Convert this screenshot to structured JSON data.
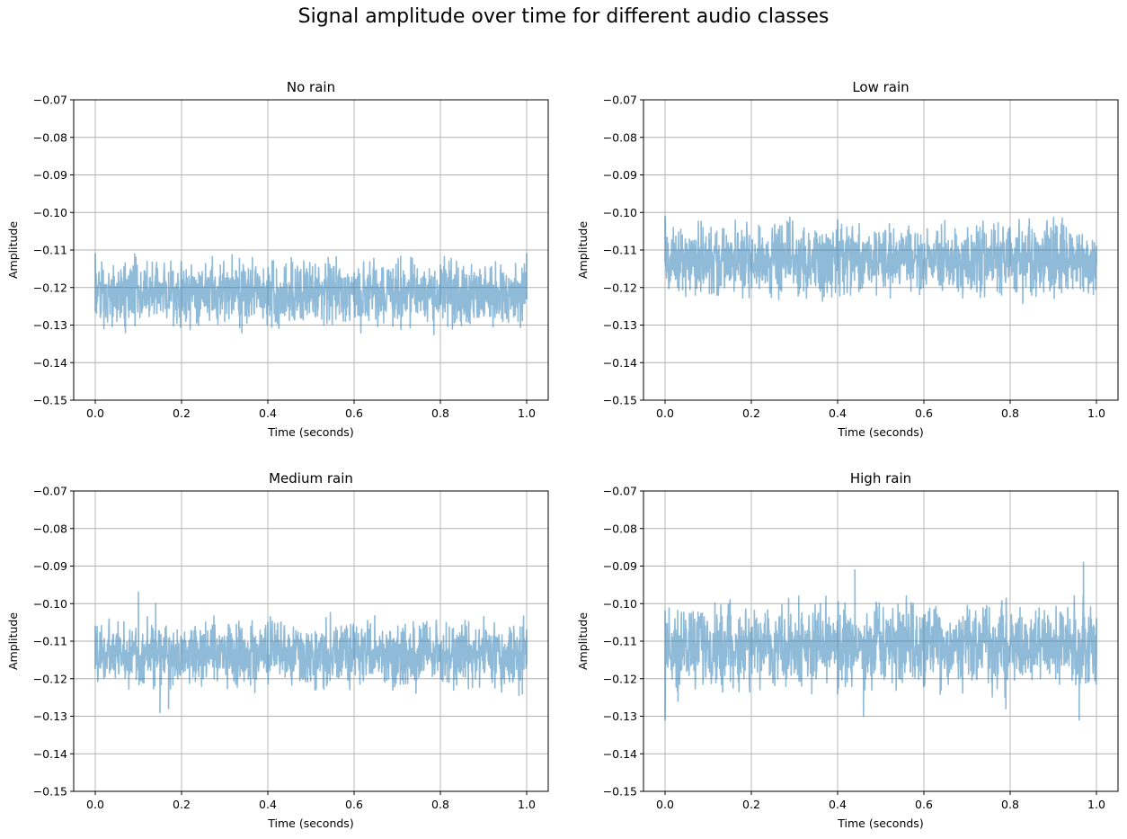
{
  "figure": {
    "title": "Signal amplitude over time for different audio classes"
  },
  "chart_data": [
    {
      "type": "line",
      "title": "No rain",
      "xlabel": "Time (seconds)",
      "ylabel": "Amplitude",
      "xlim": [
        -0.05,
        1.05
      ],
      "ylim": [
        -0.15,
        -0.07
      ],
      "xticks": [
        0.0,
        0.2,
        0.4,
        0.6,
        0.8,
        1.0
      ],
      "xtick_labels": [
        "0.0",
        "0.2",
        "0.4",
        "0.6",
        "0.8",
        "1.0"
      ],
      "yticks": [
        -0.15,
        -0.14,
        -0.13,
        -0.12,
        -0.11,
        -0.1,
        -0.09,
        -0.08,
        -0.07
      ],
      "ytick_labels": [
        "−0.15",
        "−0.14",
        "−0.13",
        "−0.12",
        "−0.11",
        "−0.10",
        "−0.09",
        "−0.08",
        "−0.07"
      ],
      "grid": true,
      "color": "#1f77b4",
      "alpha": 0.5,
      "x_range": [
        0.0,
        1.0
      ],
      "series": [
        {
          "points": [
            [
              0.0,
              -0.123
            ],
            [
              0.0,
              -0.111
            ],
            [
              0.02,
              -0.131
            ],
            [
              0.05,
              -0.129
            ],
            [
              0.06,
              -0.116
            ],
            [
              0.07,
              -0.132
            ],
            [
              0.12,
              -0.113
            ],
            [
              0.17,
              -0.116
            ],
            [
              0.21,
              -0.129
            ],
            [
              0.24,
              -0.116
            ],
            [
              0.29,
              -0.114
            ],
            [
              0.3,
              -0.129
            ],
            [
              0.34,
              -0.132
            ],
            [
              0.39,
              -0.115
            ],
            [
              0.42,
              -0.115
            ],
            [
              0.46,
              -0.128
            ],
            [
              0.49,
              -0.115
            ],
            [
              0.53,
              -0.13
            ],
            [
              0.54,
              -0.112
            ],
            [
              0.58,
              -0.129
            ],
            [
              0.61,
              -0.115
            ],
            [
              0.65,
              -0.128
            ],
            [
              0.69,
              -0.115
            ],
            [
              0.74,
              -0.114
            ],
            [
              0.77,
              -0.129
            ],
            [
              0.82,
              -0.113
            ],
            [
              0.86,
              -0.129
            ],
            [
              0.94,
              -0.114
            ],
            [
              0.98,
              -0.129
            ],
            [
              1.0,
              -0.111
            ],
            [
              1.0,
              -0.123
            ]
          ],
          "center": -0.1215,
          "spread": 0.004,
          "spike_count": 50
        }
      ]
    },
    {
      "type": "line",
      "title": "Low rain",
      "xlabel": "Time (seconds)",
      "ylabel": "Amplitude",
      "xlim": [
        -0.05,
        1.05
      ],
      "ylim": [
        -0.15,
        -0.07
      ],
      "xticks": [
        0.0,
        0.2,
        0.4,
        0.6,
        0.8,
        1.0
      ],
      "xtick_labels": [
        "0.0",
        "0.2",
        "0.4",
        "0.6",
        "0.8",
        "1.0"
      ],
      "yticks": [
        -0.15,
        -0.14,
        -0.13,
        -0.12,
        -0.11,
        -0.1,
        -0.09,
        -0.08,
        -0.07
      ],
      "ytick_labels": [
        "−0.15",
        "−0.14",
        "−0.13",
        "−0.12",
        "−0.11",
        "−0.10",
        "−0.09",
        "−0.08",
        "−0.07"
      ],
      "grid": true,
      "color": "#1f77b4",
      "alpha": 0.5,
      "x_range": [
        0.0,
        1.0
      ],
      "series": [
        {
          "points": [
            [
              0.0,
              -0.113
            ],
            [
              0.0,
              -0.101
            ],
            [
              0.01,
              -0.119
            ],
            [
              0.04,
              -0.106
            ],
            [
              0.07,
              -0.122
            ],
            [
              0.12,
              -0.105
            ],
            [
              0.16,
              -0.121
            ],
            [
              0.22,
              -0.104
            ],
            [
              0.27,
              -0.121
            ],
            [
              0.32,
              -0.105
            ],
            [
              0.36,
              -0.121
            ],
            [
              0.4,
              -0.102
            ],
            [
              0.43,
              -0.122
            ],
            [
              0.45,
              -0.103
            ],
            [
              0.49,
              -0.122
            ],
            [
              0.52,
              -0.103
            ],
            [
              0.57,
              -0.121
            ],
            [
              0.63,
              -0.105
            ],
            [
              0.68,
              -0.121
            ],
            [
              0.73,
              -0.104
            ],
            [
              0.77,
              -0.121
            ],
            [
              0.8,
              -0.106
            ],
            [
              0.85,
              -0.122
            ],
            [
              0.88,
              -0.105
            ],
            [
              0.93,
              -0.104
            ],
            [
              0.97,
              -0.121
            ],
            [
              1.0,
              -0.109
            ],
            [
              1.0,
              -0.113
            ]
          ],
          "center": -0.1125,
          "spread": 0.0045,
          "spike_count": 60
        }
      ]
    },
    {
      "type": "line",
      "title": "Medium rain",
      "xlabel": "Time (seconds)",
      "ylabel": "Amplitude",
      "xlim": [
        -0.05,
        1.05
      ],
      "ylim": [
        -0.15,
        -0.07
      ],
      "xticks": [
        0.0,
        0.2,
        0.4,
        0.6,
        0.8,
        1.0
      ],
      "xtick_labels": [
        "0.0",
        "0.2",
        "0.4",
        "0.6",
        "0.8",
        "1.0"
      ],
      "yticks": [
        -0.15,
        -0.14,
        -0.13,
        -0.12,
        -0.11,
        -0.1,
        -0.09,
        -0.08,
        -0.07
      ],
      "ytick_labels": [
        "−0.15",
        "−0.14",
        "−0.13",
        "−0.12",
        "−0.11",
        "−0.10",
        "−0.09",
        "−0.08",
        "−0.07"
      ],
      "grid": true,
      "color": "#1f77b4",
      "alpha": 0.5,
      "x_range": [
        0.0,
        1.0
      ],
      "series": [
        {
          "points": [
            [
              0.0,
              -0.112
            ],
            [
              0.0,
              -0.106
            ],
            [
              0.02,
              -0.118
            ],
            [
              0.08,
              -0.107
            ],
            [
              0.1,
              -0.097
            ],
            [
              0.11,
              -0.121
            ],
            [
              0.14,
              -0.1
            ],
            [
              0.15,
              -0.129
            ],
            [
              0.17,
              -0.128
            ],
            [
              0.19,
              -0.107
            ],
            [
              0.25,
              -0.12
            ],
            [
              0.31,
              -0.109
            ],
            [
              0.4,
              -0.105
            ],
            [
              0.44,
              -0.119
            ],
            [
              0.49,
              -0.108
            ],
            [
              0.55,
              -0.119
            ],
            [
              0.61,
              -0.108
            ],
            [
              0.68,
              -0.12
            ],
            [
              0.76,
              -0.107
            ],
            [
              0.82,
              -0.121
            ],
            [
              0.86,
              -0.106
            ],
            [
              0.92,
              -0.121
            ],
            [
              0.97,
              -0.106
            ],
            [
              0.99,
              -0.124
            ],
            [
              1.0,
              -0.107
            ],
            [
              1.0,
              -0.112
            ]
          ],
          "center": -0.1135,
          "spread": 0.004,
          "spike_count": 60
        }
      ]
    },
    {
      "type": "line",
      "title": "High rain",
      "xlabel": "Time (seconds)",
      "ylabel": "Amplitude",
      "xlim": [
        -0.05,
        1.05
      ],
      "ylim": [
        -0.15,
        -0.07
      ],
      "xticks": [
        0.0,
        0.2,
        0.4,
        0.6,
        0.8,
        1.0
      ],
      "xtick_labels": [
        "0.0",
        "0.2",
        "0.4",
        "0.6",
        "0.8",
        "1.0"
      ],
      "yticks": [
        -0.15,
        -0.14,
        -0.13,
        -0.12,
        -0.11,
        -0.1,
        -0.09,
        -0.08,
        -0.07
      ],
      "ytick_labels": [
        "−0.15",
        "−0.14",
        "−0.13",
        "−0.12",
        "−0.11",
        "−0.10",
        "−0.09",
        "−0.08",
        "−0.07"
      ],
      "grid": true,
      "color": "#1f77b4",
      "alpha": 0.5,
      "x_range": [
        0.0,
        1.0
      ],
      "series": [
        {
          "points": [
            [
              0.0,
              -0.114
            ],
            [
              0.0,
              -0.102
            ],
            [
              0.0,
              -0.131
            ],
            [
              0.03,
              -0.126
            ],
            [
              0.06,
              -0.104
            ],
            [
              0.12,
              -0.103
            ],
            [
              0.17,
              -0.121
            ],
            [
              0.24,
              -0.104
            ],
            [
              0.28,
              -0.122
            ],
            [
              0.31,
              -0.098
            ],
            [
              0.34,
              -0.124
            ],
            [
              0.36,
              -0.1
            ],
            [
              0.4,
              -0.124
            ],
            [
              0.41,
              -0.12
            ],
            [
              0.43,
              -0.104
            ],
            [
              0.44,
              -0.091
            ],
            [
              0.46,
              -0.13
            ],
            [
              0.49,
              -0.1
            ],
            [
              0.55,
              -0.121
            ],
            [
              0.6,
              -0.103
            ],
            [
              0.64,
              -0.123
            ],
            [
              0.72,
              -0.102
            ],
            [
              0.78,
              -0.102
            ],
            [
              0.79,
              -0.128
            ],
            [
              0.82,
              -0.104
            ],
            [
              0.87,
              -0.12
            ],
            [
              0.92,
              -0.103
            ],
            [
              0.96,
              -0.131
            ],
            [
              0.97,
              -0.089
            ],
            [
              0.98,
              -0.121
            ],
            [
              1.0,
              -0.104
            ],
            [
              1.0,
              -0.114
            ]
          ],
          "center": -0.1115,
          "spread": 0.005,
          "spike_count": 60
        }
      ]
    }
  ]
}
